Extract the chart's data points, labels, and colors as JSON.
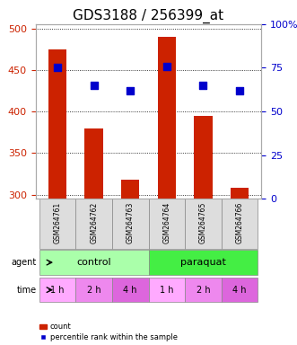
{
  "title": "GDS3188 / 256399_at",
  "categories": [
    "GSM264761",
    "GSM264762",
    "GSM264763",
    "GSM264764",
    "GSM264765",
    "GSM264766"
  ],
  "bar_values": [
    475,
    380,
    318,
    490,
    395,
    308
  ],
  "bar_color": "#cc2200",
  "bar_bottom": 295,
  "percentile_values": [
    75,
    65,
    62,
    76,
    65,
    62
  ],
  "percentile_color": "#0000cc",
  "ylim_left": [
    295,
    505
  ],
  "ylim_right": [
    0,
    100
  ],
  "yticks_left": [
    300,
    350,
    400,
    450,
    500
  ],
  "yticks_right": [
    0,
    25,
    50,
    75,
    100
  ],
  "ytick_labels_right": [
    "0",
    "25",
    "50",
    "75",
    "100%"
  ],
  "agent_labels": [
    "control",
    "paraquat"
  ],
  "agent_colors": [
    "#aaffaa",
    "#44ee44"
  ],
  "time_labels": [
    "1 h",
    "2 h",
    "4 h",
    "1 h",
    "2 h",
    "4 h"
  ],
  "time_color": "#ee44ee",
  "time_color_alt": "#cc44cc",
  "legend_bar_label": "count",
  "legend_dot_label": "percentile rank within the sample",
  "left_axis_color": "#cc2200",
  "right_axis_color": "#0000cc",
  "bar_width": 0.5,
  "title_fontsize": 11
}
